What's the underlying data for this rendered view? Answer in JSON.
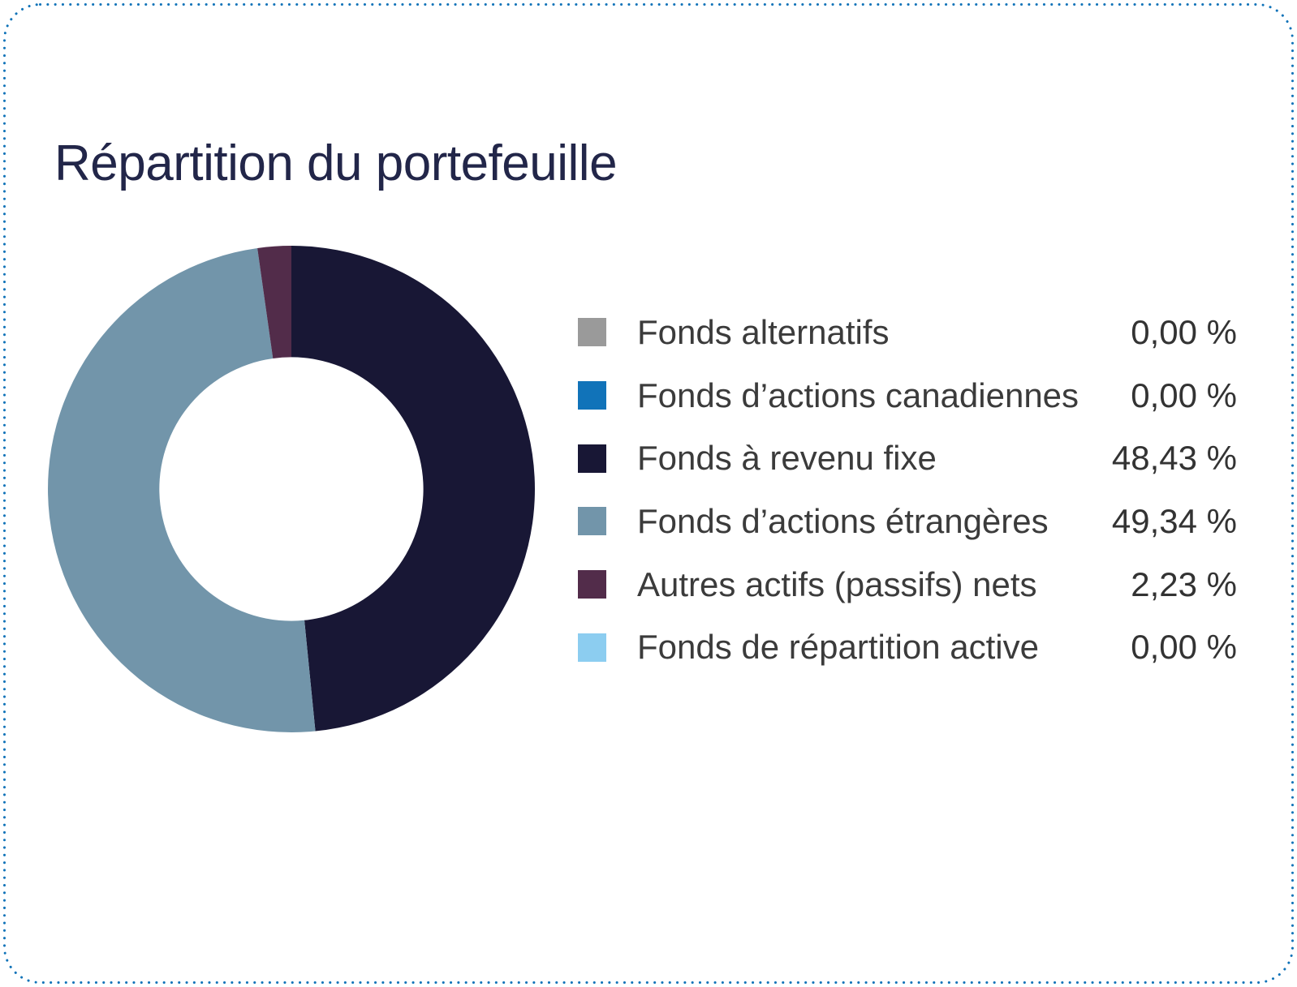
{
  "page": {
    "background": "#FFFFFF",
    "border_color": "#0E72B8"
  },
  "header": {
    "title": "Répartition du portefeuille",
    "title_color": "#222649"
  },
  "chart_data": {
    "type": "pie",
    "title": "Répartition du portefeuille",
    "donut": true,
    "inner_radius_ratio": 0.542,
    "start_angle_deg": 0,
    "direction": "clockwise",
    "legend_position": "right",
    "value_format": "french-percent",
    "series": [
      {
        "label": "Fonds alternatifs",
        "value": 0.0,
        "display": "0,00 %",
        "color": "#9A9A9A"
      },
      {
        "label": "Fonds d’actions canadiennes",
        "value": 0.0,
        "display": "0,00 %",
        "color": "#1173B9"
      },
      {
        "label": "Fonds à revenu fixe",
        "value": 48.43,
        "display": "48,43 %",
        "color": "#181735"
      },
      {
        "label": "Fonds d’actions étrangères",
        "value": 49.34,
        "display": "49,34 %",
        "color": "#7295AA"
      },
      {
        "label": "Autres actifs (passifs) nets",
        "value": 2.23,
        "display": "2,23 %",
        "color": "#522C4A"
      },
      {
        "label": "Fonds de répartition active",
        "value": 0.0,
        "display": "0,00 %",
        "color": "#8CCDF0"
      }
    ]
  }
}
